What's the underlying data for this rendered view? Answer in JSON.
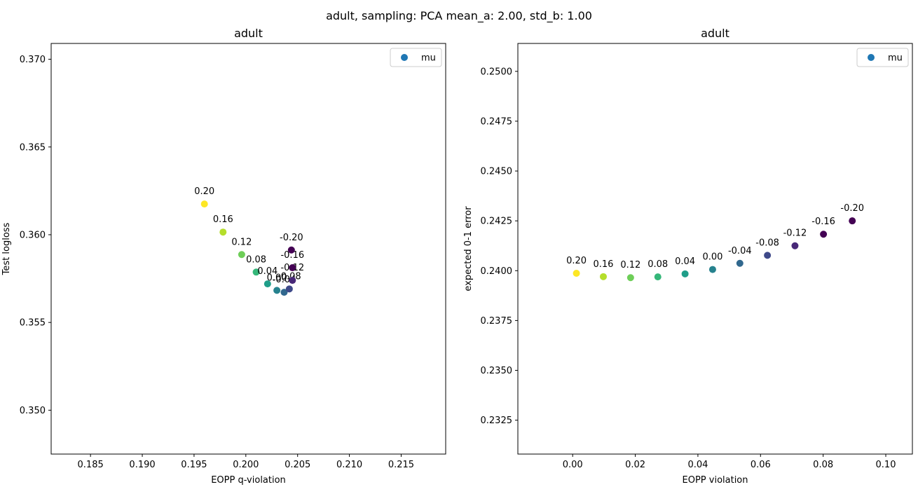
{
  "figure": {
    "suptitle": "adult, sampling: PCA mean_a: 2.00, std_b: 1.00"
  },
  "chart_data": [
    {
      "type": "scatter",
      "title": "adult",
      "xlabel": "EOPP q-violation",
      "ylabel": "Test logloss",
      "xlim": [
        0.1812,
        0.2193
      ],
      "ylim": [
        0.3475,
        0.3709
      ],
      "xticks": [
        0.185,
        0.19,
        0.195,
        0.2,
        0.205,
        0.21,
        0.215
      ],
      "xtick_labels": [
        "0.185",
        "0.190",
        "0.195",
        "0.200",
        "0.205",
        "0.210",
        "0.215"
      ],
      "yticks": [
        0.35,
        0.355,
        0.36,
        0.365,
        0.37
      ],
      "ytick_labels": [
        "0.350",
        "0.355",
        "0.360",
        "0.365",
        "0.370"
      ],
      "grid": false,
      "legend": {
        "position": "top-right",
        "entries": [
          "mu"
        ]
      },
      "series": [
        {
          "name": "mu",
          "points": [
            {
              "label": "0.20",
              "x": 0.196,
              "y": 0.36175,
              "color": "#fde725"
            },
            {
              "label": "0.16",
              "x": 0.1978,
              "y": 0.36015,
              "color": "#b5de2b"
            },
            {
              "label": "0.12",
              "x": 0.1996,
              "y": 0.35887,
              "color": "#6ece58"
            },
            {
              "label": "0.08",
              "x": 0.201,
              "y": 0.35787,
              "color": "#35b779"
            },
            {
              "label": "0.04",
              "x": 0.2021,
              "y": 0.3572,
              "color": "#1f9e89"
            },
            {
              "label": "0.00",
              "x": 0.203,
              "y": 0.35683,
              "color": "#26828e"
            },
            {
              "label": "-0.04",
              "x": 0.2037,
              "y": 0.35672,
              "color": "#31688e"
            },
            {
              "label": "-0.08",
              "x": 0.2042,
              "y": 0.35691,
              "color": "#3e4989"
            },
            {
              "label": "-0.12",
              "x": 0.2045,
              "y": 0.3574,
              "color": "#482878"
            },
            {
              "label": "-0.16",
              "x": 0.2045,
              "y": 0.35812,
              "color": "#440154"
            },
            {
              "label": "-0.20",
              "x": 0.2044,
              "y": 0.35913,
              "color": "#440154"
            }
          ]
        }
      ]
    },
    {
      "type": "scatter",
      "title": "adult",
      "xlabel": "EOPP violation",
      "ylabel": "expected 0-1 error",
      "xlim": [
        -0.0175,
        0.1085
      ],
      "ylim": [
        0.2308,
        0.2514
      ],
      "xticks": [
        0.0,
        0.02,
        0.04,
        0.06,
        0.08,
        0.1
      ],
      "xtick_labels": [
        "0.00",
        "0.02",
        "0.04",
        "0.06",
        "0.08",
        "0.10"
      ],
      "yticks": [
        0.2325,
        0.235,
        0.2375,
        0.24,
        0.2425,
        0.245,
        0.2475,
        0.25
      ],
      "ytick_labels": [
        "0.2325",
        "0.2350",
        "0.2375",
        "0.2400",
        "0.2425",
        "0.2450",
        "0.2475",
        "0.2500"
      ],
      "grid": false,
      "legend": {
        "position": "top-right",
        "entries": [
          "mu"
        ]
      },
      "series": [
        {
          "name": "mu",
          "points": [
            {
              "label": "0.20",
              "x": 0.0012,
              "y": 0.23987,
              "color": "#fde725"
            },
            {
              "label": "0.16",
              "x": 0.0098,
              "y": 0.2397,
              "color": "#b5de2b"
            },
            {
              "label": "0.12",
              "x": 0.0185,
              "y": 0.23965,
              "color": "#6ece58"
            },
            {
              "label": "0.08",
              "x": 0.0272,
              "y": 0.23969,
              "color": "#35b779"
            },
            {
              "label": "0.04",
              "x": 0.0359,
              "y": 0.23984,
              "color": "#1f9e89"
            },
            {
              "label": "0.00",
              "x": 0.0447,
              "y": 0.24006,
              "color": "#26828e"
            },
            {
              "label": "-0.04",
              "x": 0.0534,
              "y": 0.24037,
              "color": "#31688e"
            },
            {
              "label": "-0.08",
              "x": 0.0622,
              "y": 0.24077,
              "color": "#3e4989"
            },
            {
              "label": "-0.12",
              "x": 0.071,
              "y": 0.24125,
              "color": "#482878"
            },
            {
              "label": "-0.16",
              "x": 0.0801,
              "y": 0.24183,
              "color": "#440154"
            },
            {
              "label": "-0.20",
              "x": 0.0893,
              "y": 0.2425,
              "color": "#440154"
            }
          ]
        }
      ]
    }
  ],
  "style": {
    "legend_marker_color": "#1f77b4",
    "axis_color": "#000000",
    "legend_border": "#cccccc"
  }
}
